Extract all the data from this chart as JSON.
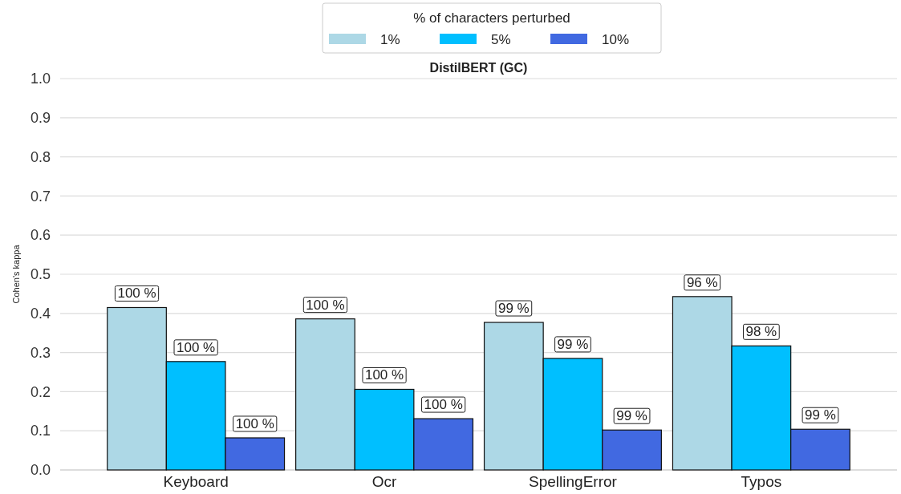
{
  "chart_data": {
    "type": "bar",
    "title": "DistilBERT (GC)",
    "ylabel": "Cohen's kappa",
    "legend_title": "% of characters perturbed",
    "categories": [
      "Keyboard",
      "Ocr",
      "SpellingError",
      "Typos"
    ],
    "series": [
      {
        "name": "1%",
        "color": "#add8e6",
        "values": [
          0.415,
          0.386,
          0.377,
          0.443
        ]
      },
      {
        "name": "5%",
        "color": "#00bfff",
        "values": [
          0.277,
          0.206,
          0.285,
          0.317
        ]
      },
      {
        "name": "10%",
        "color": "#4169e1",
        "values": [
          0.082,
          0.131,
          0.102,
          0.104
        ]
      }
    ],
    "annotations": [
      "100 %",
      "100 %",
      "99 %",
      "96 %",
      "100 %",
      "100 %",
      "99 %",
      "98 %",
      "100 %",
      "100 %",
      "99 %",
      "99 %"
    ],
    "ylim": [
      0,
      1
    ],
    "yticks": [
      {
        "value": 0,
        "label": "0.0"
      },
      0.1,
      0.2,
      0.3,
      0.4,
      0.5,
      0.6,
      0.7,
      0.8,
      0.9,
      {
        "value": 1,
        "label": "1.0"
      }
    ],
    "grid": "y",
    "legend": "top"
  }
}
